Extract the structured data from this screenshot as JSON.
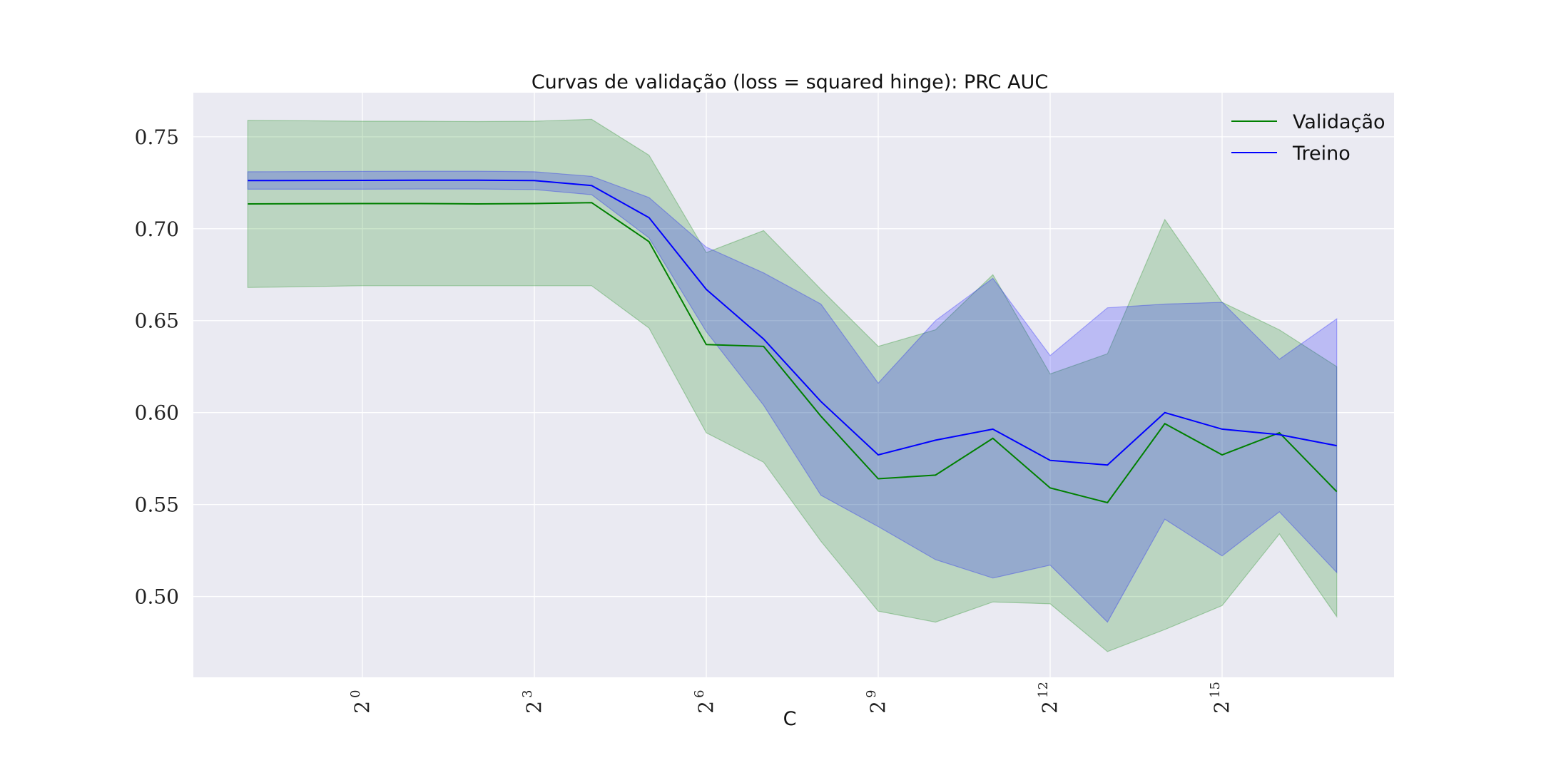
{
  "chart_data": {
    "type": "line",
    "title": "Curvas de validação (loss = squared hinge): PRC AUC",
    "xlabel": "C",
    "ylabel": "",
    "x_scale": "log2",
    "x_exponents": [
      -2,
      0,
      1,
      2,
      3,
      4,
      5,
      6,
      7,
      8,
      9,
      10,
      11,
      12,
      13,
      14,
      15,
      16,
      17
    ],
    "xlim_exponents": [
      -2.95,
      18.0
    ],
    "x_tick_exponents": [
      0,
      3,
      6,
      9,
      12,
      15
    ],
    "ylim": [
      0.456,
      0.774
    ],
    "yticks": [
      "0.50",
      "0.55",
      "0.60",
      "0.65",
      "0.70",
      "0.75"
    ],
    "grid": true,
    "legend_position": "top-right",
    "background": "#eaeaf2",
    "series": [
      {
        "name": "Validação",
        "color": "#008000",
        "values": [
          0.7135,
          0.7137,
          0.7137,
          0.7135,
          0.7137,
          0.7142,
          0.693,
          0.637,
          0.636,
          0.598,
          0.564,
          0.566,
          0.586,
          0.559,
          0.551,
          0.594,
          0.577,
          0.589,
          0.557
        ],
        "band_upper": [
          0.759,
          0.7585,
          0.7585,
          0.7583,
          0.7585,
          0.7595,
          0.74,
          0.687,
          0.699,
          0.667,
          0.636,
          0.645,
          0.675,
          0.621,
          0.632,
          0.705,
          0.66,
          0.645,
          0.625
        ],
        "band_lower": [
          0.668,
          0.669,
          0.669,
          0.669,
          0.669,
          0.669,
          0.646,
          0.589,
          0.573,
          0.53,
          0.492,
          0.486,
          0.497,
          0.496,
          0.47,
          0.482,
          0.495,
          0.534,
          0.489
        ]
      },
      {
        "name": "Treino",
        "color": "#0000ff",
        "values": [
          0.7262,
          0.7263,
          0.7264,
          0.7264,
          0.7262,
          0.7235,
          0.706,
          0.667,
          0.64,
          0.606,
          0.577,
          0.585,
          0.591,
          0.574,
          0.5715,
          0.6,
          0.591,
          0.588,
          0.582
        ],
        "band_upper": [
          0.731,
          0.7312,
          0.7313,
          0.7313,
          0.731,
          0.7285,
          0.717,
          0.69,
          0.676,
          0.659,
          0.616,
          0.65,
          0.673,
          0.631,
          0.657,
          0.659,
          0.66,
          0.629,
          0.651
        ],
        "band_lower": [
          0.7215,
          0.7215,
          0.7216,
          0.7216,
          0.7213,
          0.7185,
          0.695,
          0.644,
          0.604,
          0.555,
          0.538,
          0.52,
          0.51,
          0.517,
          0.486,
          0.542,
          0.522,
          0.546,
          0.513
        ]
      }
    ]
  }
}
